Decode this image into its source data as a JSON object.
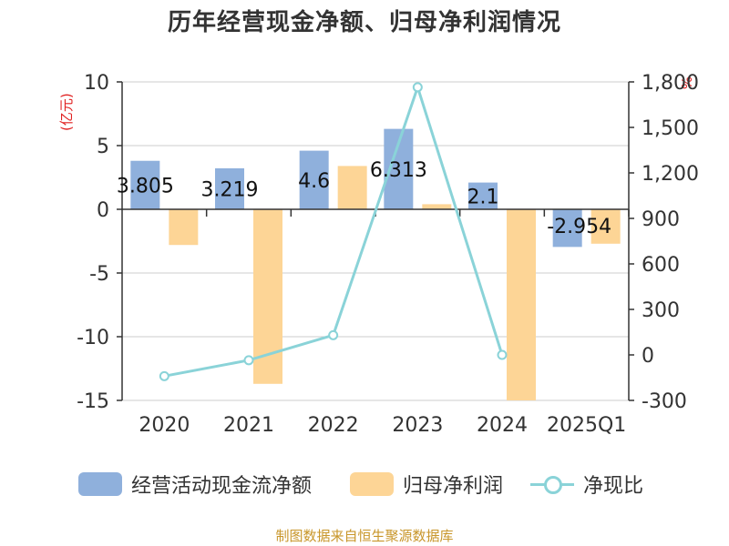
{
  "chart_data": {
    "type": "bar",
    "title": "历年经营现金净额、归母净利润情况",
    "categories": [
      "2020",
      "2021",
      "2022",
      "2023",
      "2024",
      "2025Q1"
    ],
    "ylabel_left": "(亿元)",
    "ylabel_right": "%",
    "ylim_left": [
      -15,
      10
    ],
    "yticks_left": [
      10,
      5,
      0,
      -5,
      -10,
      -15
    ],
    "ylim_right": [
      -300,
      1800
    ],
    "yticks_right": [
      "1,800",
      "1,500",
      "1,200",
      "900",
      "600",
      "300",
      "0",
      "-300"
    ],
    "series": [
      {
        "name": "经营活动现金流净额",
        "type": "bar",
        "axis": "left",
        "color": "#8fb0dc",
        "values": [
          3.805,
          3.219,
          4.6,
          6.313,
          2.1,
          -2.954
        ],
        "labels": [
          "3.805",
          "3.219",
          "4.6",
          "6.313",
          "2.1",
          "-2.954"
        ]
      },
      {
        "name": "归母净利润",
        "type": "bar",
        "axis": "left",
        "color": "#fdd596",
        "values": [
          -2.8,
          -13.7,
          3.4,
          0.4,
          -15.0,
          -2.7
        ]
      },
      {
        "name": "净现比",
        "type": "line",
        "axis": "right",
        "color": "#8ad3d8",
        "values": [
          -140,
          -35,
          130,
          1765,
          0,
          null
        ]
      }
    ]
  },
  "source": "制图数据来自恒生聚源数据库"
}
